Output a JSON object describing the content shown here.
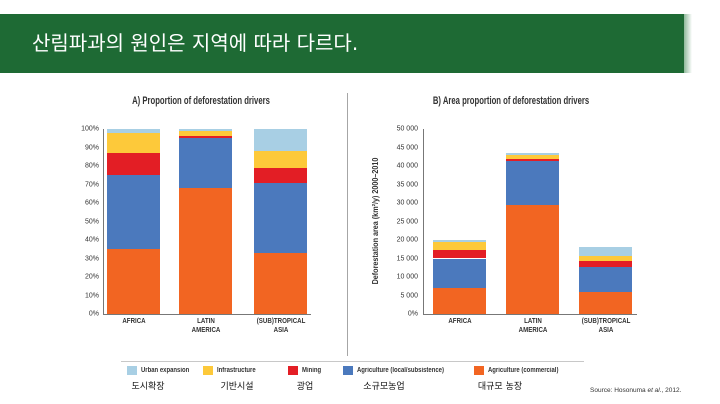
{
  "slide": {
    "title": "산림파과의 원인은 지역에 따라 다르다."
  },
  "chart_data": [
    {
      "type": "bar",
      "stacked": true,
      "title": "A) Proportion of deforestation drivers",
      "ylim": [
        0,
        100
      ],
      "grid": false,
      "yticks": [
        {
          "value": 0,
          "label": "0%"
        },
        {
          "value": 10,
          "label": "10%"
        },
        {
          "value": 20,
          "label": "20%"
        },
        {
          "value": 30,
          "label": "30%"
        },
        {
          "value": 40,
          "label": "40%"
        },
        {
          "value": 50,
          "label": "50%"
        },
        {
          "value": 60,
          "label": "60%"
        },
        {
          "value": 70,
          "label": "70%"
        },
        {
          "value": 80,
          "label": "80%"
        },
        {
          "value": 90,
          "label": "90%"
        },
        {
          "value": 100,
          "label": "100%"
        }
      ],
      "categories": [
        "AFRICA",
        "LATIN AMERICA",
        "(SUB)TROPICAL ASIA"
      ],
      "series": [
        {
          "color": "#a8cfe4",
          "values": [
            2,
            1,
            12
          ]
        },
        {
          "color": "#fdc93a",
          "values": [
            11,
            3,
            9
          ]
        },
        {
          "color": "#e31e25",
          "values": [
            12,
            1,
            8
          ]
        },
        {
          "color": "#4b79bd",
          "values": [
            40,
            27,
            38
          ]
        },
        {
          "color": "#f26522",
          "values": [
            35,
            68,
            33
          ]
        }
      ]
    },
    {
      "type": "bar",
      "stacked": true,
      "title": "B) Area proportion of deforestation drivers",
      "ylabel": "Deforestation area (km²/y) 2000–2010",
      "ylim": [
        0,
        50000
      ],
      "grid": false,
      "yticks": [
        {
          "value": 0,
          "label": "0%"
        },
        {
          "value": 5000,
          "label": "5 000"
        },
        {
          "value": 10000,
          "label": "10 000"
        },
        {
          "value": 15000,
          "label": "15 000"
        },
        {
          "value": 20000,
          "label": "20 000"
        },
        {
          "value": 25000,
          "label": "25 000"
        },
        {
          "value": 30000,
          "label": "30 000"
        },
        {
          "value": 35000,
          "label": "35 000"
        },
        {
          "value": 40000,
          "label": "40 000"
        },
        {
          "value": 45000,
          "label": "45 000"
        },
        {
          "value": 50000,
          "label": "50 000"
        }
      ],
      "categories": [
        "AFRICA",
        "LATIN AMERICA",
        "(SUB)TROPICAL ASIA"
      ],
      "series": [
        {
          "color": "#a8cfe4",
          "values": [
            500,
            400,
            2200
          ]
        },
        {
          "color": "#fdc93a",
          "values": [
            2100,
            1300,
            1600
          ]
        },
        {
          "color": "#e31e25",
          "values": [
            2400,
            500,
            1400
          ]
        },
        {
          "color": "#4b79bd",
          "values": [
            8000,
            11800,
            6800
          ]
        },
        {
          "color": "#f26522",
          "values": [
            7000,
            29500,
            6000
          ]
        }
      ]
    }
  ],
  "legend": {
    "placement": "bottom",
    "items": [
      {
        "label": "Urban expansion",
        "color": "#a8cfe4",
        "translation": "도시확장"
      },
      {
        "label": "Infrastructure",
        "color": "#fdc93a",
        "translation": "기반시설"
      },
      {
        "label": "Mining",
        "color": "#e31e25",
        "translation": "광업"
      },
      {
        "label": "Agriculture (local/subsistence)",
        "color": "#4b79bd",
        "translation": "소규모농업"
      },
      {
        "label": "Agriculture (commercial)",
        "color": "#f26522",
        "translation": "대규모 농장"
      }
    ]
  },
  "source": {
    "prefix": "Source: Hosonuma ",
    "italic": "et al.",
    "suffix": ", 2012."
  },
  "colors": {
    "header_background": "#1e6a34"
  }
}
